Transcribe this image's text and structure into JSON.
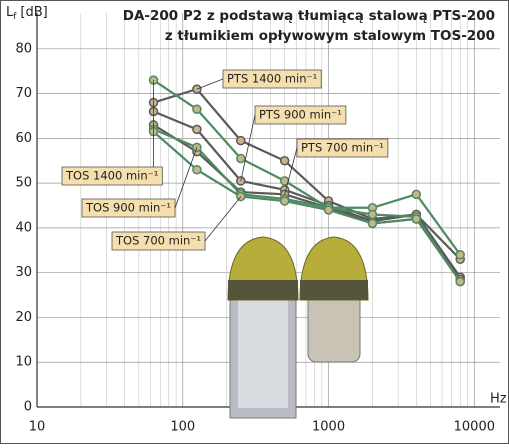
{
  "chart_data": {
    "type": "line",
    "title": "DA-200 P2 z podstawą tłumiącą stalową PTS-200",
    "subtitle": "z tłumikiem opływowym stalowym TOS-200",
    "ylabel": {
      "symbol": "L",
      "subscript": "f",
      "unit": "[dB]"
    },
    "xlabel": "Hz",
    "x": [
      63,
      125,
      250,
      500,
      1000,
      2000,
      4000,
      8000
    ],
    "xscale": "log",
    "xlim": [
      10,
      15000
    ],
    "xticks": [
      10,
      100,
      1000,
      10000
    ],
    "ylim": [
      0,
      88
    ],
    "yticks": [
      0,
      10,
      20,
      30,
      40,
      50,
      60,
      70,
      80
    ],
    "grid": true,
    "series": [
      {
        "name": "PTS 1400 min⁻¹",
        "color": "#5a5a5a",
        "values": [
          68,
          71,
          59.5,
          55,
          46,
          42,
          43,
          33
        ]
      },
      {
        "name": "PTS 900 min⁻¹",
        "color": "#5a5a5a",
        "values": [
          66,
          62,
          50.5,
          48.5,
          45,
          41.5,
          43,
          29
        ]
      },
      {
        "name": "PTS 700 min⁻¹",
        "color": "#5a5a5a",
        "values": [
          63,
          57,
          48,
          47.5,
          44.5,
          41,
          42,
          28.5
        ]
      },
      {
        "name": "TOS 1400 min⁻¹",
        "color": "#4e8a62",
        "values": [
          73,
          66.5,
          55.5,
          50.5,
          44.5,
          44.5,
          47.5,
          34
        ]
      },
      {
        "name": "TOS 900 min⁻¹",
        "color": "#4e8a62",
        "values": [
          62,
          58,
          47.5,
          46.5,
          44.5,
          43,
          42.5,
          28
        ]
      },
      {
        "name": "TOS 700 min⁻¹",
        "color": "#4e8a62",
        "values": [
          61.5,
          53,
          47,
          46,
          44,
          41,
          42,
          28
        ]
      }
    ]
  }
}
